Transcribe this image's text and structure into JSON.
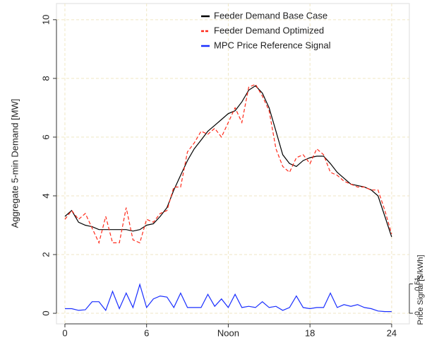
{
  "chart_data": {
    "type": "line",
    "legend": "top",
    "grid": true,
    "x": [
      0,
      0.5,
      1,
      1.5,
      2,
      2.5,
      3,
      3.5,
      4,
      4.5,
      5,
      5.5,
      6,
      6.5,
      7,
      7.5,
      8,
      8.5,
      9,
      9.5,
      10,
      10.5,
      11,
      11.5,
      12,
      12.5,
      13,
      13.5,
      14,
      14.5,
      15,
      15.5,
      16,
      16.5,
      17,
      17.5,
      18,
      18.5,
      19,
      19.5,
      20,
      20.5,
      21,
      21.5,
      22,
      22.5,
      23,
      23.5,
      24
    ],
    "xlim": [
      -0.62,
      25.3
    ],
    "xticks": [
      0,
      6,
      {
        "value": 12,
        "label": "Noon"
      },
      18,
      24
    ],
    "ylabel": "Aggregate 5-min Demand [MW]",
    "ylim": [
      -0.36,
      10.55
    ],
    "yticks": [
      0,
      2,
      4,
      6,
      8,
      10
    ],
    "y2label": "Price Signal [$/kWh]",
    "y2lim": [
      -0.184,
      5.38
    ],
    "y2ticks": [
      0,
      0.51
    ],
    "series": [
      {
        "name": "Feeder Demand Base Case",
        "color": "#000000",
        "dash": false,
        "values": [
          3.3,
          3.5,
          3.1,
          3.0,
          2.95,
          2.85,
          2.85,
          2.85,
          2.85,
          2.85,
          2.8,
          2.85,
          3.0,
          3.05,
          3.3,
          3.6,
          4.2,
          4.7,
          5.2,
          5.6,
          5.9,
          6.2,
          6.4,
          6.6,
          6.8,
          6.9,
          7.2,
          7.6,
          7.75,
          7.5,
          7.0,
          6.2,
          5.4,
          5.1,
          5.0,
          5.2,
          5.3,
          5.35,
          5.35,
          5.1,
          4.8,
          4.6,
          4.4,
          4.35,
          4.3,
          4.2,
          4.0,
          3.3,
          2.6
        ]
      },
      {
        "name": "Feeder Demand Optimized",
        "color": "#ff2a1a",
        "dash": true,
        "values": [
          3.2,
          3.5,
          3.2,
          3.4,
          2.9,
          2.4,
          3.3,
          2.4,
          2.4,
          3.6,
          2.5,
          2.4,
          3.2,
          3.1,
          3.4,
          3.5,
          4.3,
          4.3,
          5.5,
          5.8,
          6.2,
          6.1,
          6.3,
          6.0,
          6.5,
          7.0,
          6.5,
          7.7,
          7.8,
          7.4,
          6.9,
          5.6,
          5.0,
          4.8,
          5.3,
          5.4,
          5.1,
          5.6,
          5.4,
          4.8,
          4.7,
          4.5,
          4.4,
          4.3,
          4.3,
          4.2,
          4.2,
          3.5,
          2.7
        ]
      },
      {
        "name": "MPC Price Reference Signal",
        "color": "#1a2fff",
        "dash": false,
        "axis": "y2",
        "values": [
          0.08,
          0.08,
          0.05,
          0.06,
          0.2,
          0.2,
          0.05,
          0.38,
          0.08,
          0.35,
          0.1,
          0.5,
          0.1,
          0.25,
          0.3,
          0.28,
          0.1,
          0.35,
          0.1,
          0.1,
          0.1,
          0.33,
          0.12,
          0.25,
          0.1,
          0.33,
          0.1,
          0.12,
          0.1,
          0.2,
          0.1,
          0.12,
          0.05,
          0.1,
          0.3,
          0.1,
          0.08,
          0.1,
          0.1,
          0.35,
          0.1,
          0.15,
          0.12,
          0.15,
          0.1,
          0.08,
          0.04,
          0.03,
          0.03
        ]
      }
    ]
  }
}
